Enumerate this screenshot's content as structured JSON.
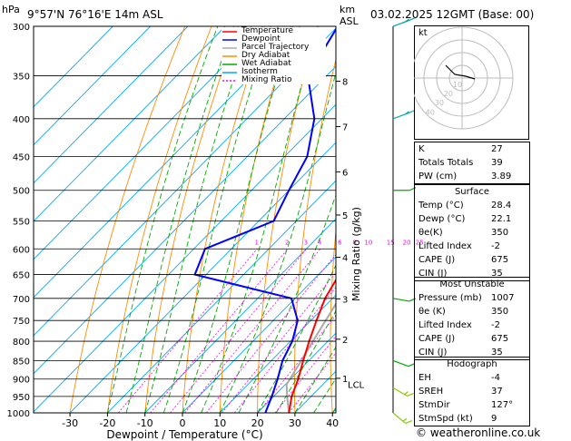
{
  "header": {
    "pressure_unit": "hPa",
    "location": "9°57'N 76°16'E 14m ASL",
    "height_unit_top": "km",
    "height_unit_bottom": "ASL",
    "date": "03.02.2025 12GMT (Base: 00)"
  },
  "legend": [
    {
      "label": "Temperature",
      "color": "#ff0000",
      "dash": ""
    },
    {
      "label": "Dewpoint",
      "color": "#0000ff",
      "dash": ""
    },
    {
      "label": "Parcel Trajectory",
      "color": "#aaaaaa",
      "dash": ""
    },
    {
      "label": "Dry Adiabat",
      "color": "#ff8c00",
      "dash": ""
    },
    {
      "label": "Wet Adiabat",
      "color": "#00aa00",
      "dash": ""
    },
    {
      "label": "Isotherm",
      "color": "#00aaff",
      "dash": ""
    },
    {
      "label": "Mixing Ratio",
      "color": "#ff00ff",
      "dash": "2,2"
    }
  ],
  "chart_data": {
    "type": "skew-t",
    "xlabel": "Dewpoint / Temperature (°C)",
    "ylabel_right": "Mixing Ratio (g/kg)",
    "x_ticks": [
      -30,
      -20,
      -10,
      0,
      10,
      20,
      30,
      40
    ],
    "pressure_levels": [
      300,
      350,
      400,
      450,
      500,
      550,
      600,
      650,
      700,
      750,
      800,
      850,
      900,
      950,
      1000
    ],
    "km_ticks": [
      {
        "label": "8",
        "p": 356
      },
      {
        "label": "7",
        "p": 410
      },
      {
        "label": "6",
        "p": 472
      },
      {
        "label": "5",
        "p": 540
      },
      {
        "label": "4",
        "p": 616
      },
      {
        "label": "3",
        "p": 701
      },
      {
        "label": "2",
        "p": 795
      },
      {
        "label": "1",
        "p": 898
      }
    ],
    "lcl_label": "LCL",
    "lcl_p": 915,
    "mixing_ratio_labels": [
      "1",
      "2",
      "3",
      "4",
      "6",
      "8",
      "10",
      "15",
      "20",
      "25"
    ],
    "mixing_ratio_values": [
      1,
      2,
      3,
      4,
      6,
      8,
      10,
      15,
      20,
      25
    ],
    "temperature": [
      {
        "p": 1000,
        "t": 28.4
      },
      {
        "p": 950,
        "t": 24.8
      },
      {
        "p": 900,
        "t": 22.0
      },
      {
        "p": 850,
        "t": 18.5
      },
      {
        "p": 800,
        "t": 15.0
      },
      {
        "p": 750,
        "t": 11.5
      },
      {
        "p": 700,
        "t": 8.0
      },
      {
        "p": 650,
        "t": 5.5
      },
      {
        "p": 600,
        "t": 1.5
      },
      {
        "p": 550,
        "t": -2.8
      },
      {
        "p": 500,
        "t": -7.5
      },
      {
        "p": 450,
        "t": -13.0
      },
      {
        "p": 400,
        "t": -19.0
      },
      {
        "p": 350,
        "t": -26.5
      },
      {
        "p": 300,
        "t": -36.0
      }
    ],
    "dewpoint": [
      {
        "p": 1000,
        "t": 22.1
      },
      {
        "p": 950,
        "t": 19.5
      },
      {
        "p": 900,
        "t": 16.5
      },
      {
        "p": 850,
        "t": 13.0
      },
      {
        "p": 800,
        "t": 10.5
      },
      {
        "p": 750,
        "t": 6.5
      },
      {
        "p": 700,
        "t": -1.0
      },
      {
        "p": 650,
        "t": -33.0
      },
      {
        "p": 600,
        "t": -37.0
      },
      {
        "p": 550,
        "t": -26.0
      },
      {
        "p": 500,
        "t": -30.0
      },
      {
        "p": 450,
        "t": -34.0
      },
      {
        "p": 400,
        "t": -42.0
      },
      {
        "p": 350,
        "t": -55.0
      },
      {
        "p": 300,
        "t": -60.0
      }
    ],
    "parcel": [
      {
        "p": 1000,
        "t": 28.4
      },
      {
        "p": 950,
        "t": 23.6
      },
      {
        "p": 915,
        "t": 20.3
      },
      {
        "p": 850,
        "t": 18.0
      },
      {
        "p": 800,
        "t": 16.0
      },
      {
        "p": 700,
        "t": 11.8
      },
      {
        "p": 600,
        "t": 6.5
      },
      {
        "p": 500,
        "t": -0.5
      },
      {
        "p": 400,
        "t": -10.5
      },
      {
        "p": 300,
        "t": -26.0
      }
    ],
    "wind_barbs": [
      {
        "p": 300,
        "dir": 70,
        "spd": 15
      },
      {
        "p": 400,
        "dir": 70,
        "spd": 10
      },
      {
        "p": 500,
        "dir": 90,
        "spd": 5
      },
      {
        "p": 700,
        "dir": 100,
        "spd": 5
      },
      {
        "p": 850,
        "dir": 110,
        "spd": 5
      },
      {
        "p": 925,
        "dir": 120,
        "spd": 10
      },
      {
        "p": 1000,
        "dir": 130,
        "spd": 10
      }
    ]
  },
  "hodograph": {
    "unit_label": "kt",
    "ring_labels": [
      "10",
      "20",
      "30",
      "40"
    ]
  },
  "indices": [
    {
      "label": "K",
      "value": "27"
    },
    {
      "label": "Totals Totals",
      "value": "39"
    },
    {
      "label": "PW (cm)",
      "value": "3.89"
    }
  ],
  "surface": {
    "title": "Surface",
    "rows": [
      {
        "label": "Temp (°C)",
        "value": "28.4"
      },
      {
        "label": "Dewp (°C)",
        "value": "22.1"
      },
      {
        "label": "θe(K)",
        "value": "350"
      },
      {
        "label": "Lifted Index",
        "value": "-2"
      },
      {
        "label": "CAPE (J)",
        "value": "675"
      },
      {
        "label": "CIN (J)",
        "value": "35"
      }
    ]
  },
  "most_unstable": {
    "title": "Most Unstable",
    "rows": [
      {
        "label": "Pressure (mb)",
        "value": "1007"
      },
      {
        "label": "θe (K)",
        "value": "350"
      },
      {
        "label": "Lifted Index",
        "value": "-2"
      },
      {
        "label": "CAPE (J)",
        "value": "675"
      },
      {
        "label": "CIN (J)",
        "value": "35"
      }
    ]
  },
  "hodo_table": {
    "title": "Hodograph",
    "rows": [
      {
        "label": "EH",
        "value": "-4"
      },
      {
        "label": "SREH",
        "value": "37"
      },
      {
        "label": "StmDir",
        "value": "127°"
      },
      {
        "label": "StmSpd (kt)",
        "value": "9"
      }
    ]
  },
  "footer": "© weatheronline.co.uk"
}
